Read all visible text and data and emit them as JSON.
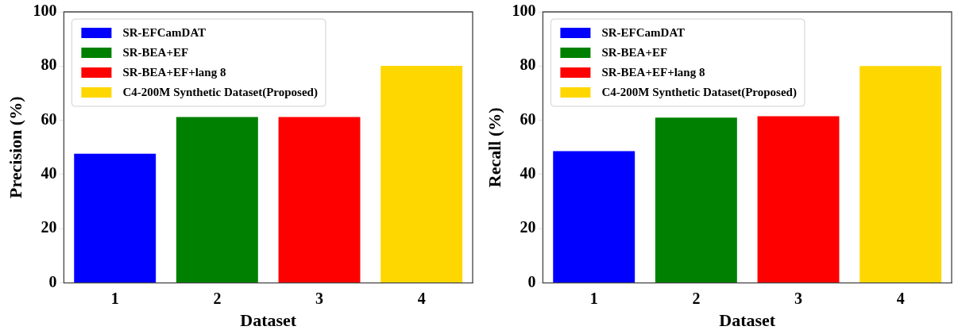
{
  "chart_data": [
    {
      "type": "bar",
      "xlabel": "Dataset",
      "ylabel": "Precision (%)",
      "categories": [
        "1",
        "2",
        "3",
        "4"
      ],
      "series": [
        {
          "name": "SR-EFCamDAT",
          "color": "#0000ff",
          "values": [
            47.7,
            null,
            null,
            null
          ]
        },
        {
          "name": "SR-BEA+EF",
          "color": "#008000",
          "values": [
            null,
            61.2,
            null,
            null
          ]
        },
        {
          "name": "SR-BEA+EF+lang 8",
          "color": "#ff0000",
          "values": [
            null,
            null,
            61.2,
            null
          ]
        },
        {
          "name": "C4-200M Synthetic Dataset(Proposed)",
          "color": "#ffd700",
          "values": [
            null,
            null,
            null,
            80.1
          ]
        }
      ],
      "ylim": [
        0,
        100
      ],
      "yticks": [
        0,
        20,
        40,
        60,
        80,
        100
      ],
      "grid": false,
      "legend": "top left"
    },
    {
      "type": "bar",
      "xlabel": "Dataset",
      "ylabel": "Recall (%)",
      "categories": [
        "1",
        "2",
        "3",
        "4"
      ],
      "series": [
        {
          "name": "SR-EFCamDAT",
          "color": "#0000ff",
          "values": [
            48.6,
            null,
            null,
            null
          ]
        },
        {
          "name": "SR-BEA+EF",
          "color": "#008000",
          "values": [
            null,
            61.0,
            null,
            null
          ]
        },
        {
          "name": "SR-BEA+EF+lang 8",
          "color": "#ff0000",
          "values": [
            null,
            null,
            61.5,
            null
          ]
        },
        {
          "name": "C4-200M Synthetic Dataset(Proposed)",
          "color": "#ffd700",
          "values": [
            null,
            null,
            null,
            80.0
          ]
        }
      ],
      "ylim": [
        0,
        100
      ],
      "yticks": [
        0,
        20,
        40,
        60,
        80,
        100
      ],
      "grid": false,
      "legend": "top left"
    }
  ]
}
